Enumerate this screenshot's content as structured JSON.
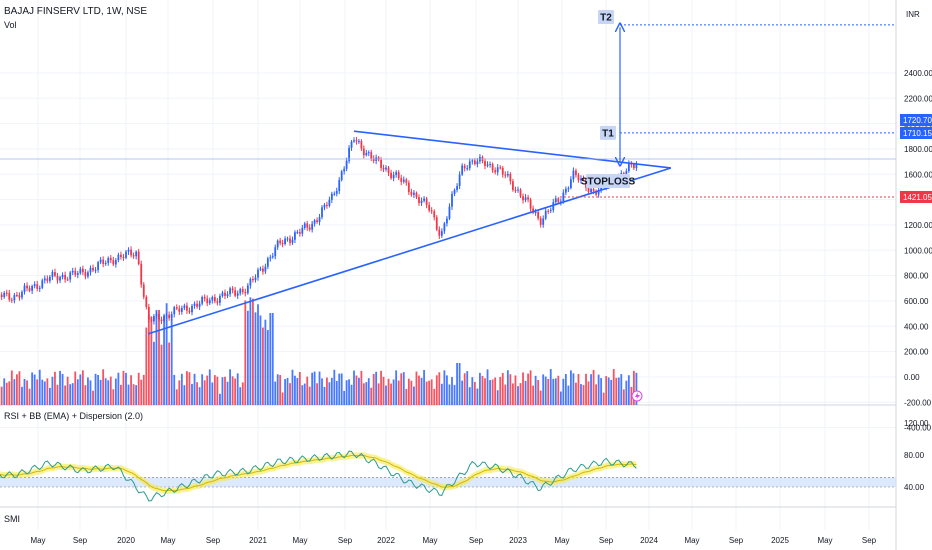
{
  "header": {
    "title": "BAJAJ FINSERV LTD, 1W, NSE",
    "volume_label": "Vol"
  },
  "indicators": {
    "rsi_label": "RSI + BB (EMA) + Dispersion (2.0)",
    "smi_label": "SMI",
    "flash_icon": "lightning-icon"
  },
  "colors": {
    "up": "#2962ff",
    "down": "#f23645",
    "trendline": "#2962ff",
    "stoploss": "#f23645",
    "bb_fill": "#f5e93a",
    "rsi_band": "#cfe0fb"
  },
  "chart_data": [
    {
      "type": "line",
      "title": "BAJAJ FINSERV LTD, 1W, NSE",
      "y_unit": "INR",
      "xlabel": "",
      "ylabel": "",
      "x_ticks": [
        "May",
        "Sep",
        "2020",
        "May",
        "Sep",
        "2021",
        "May",
        "Sep",
        "2022",
        "May",
        "Sep",
        "2023",
        "May",
        "Sep",
        "2024",
        "May",
        "Sep",
        "2025",
        "May",
        "Sep"
      ],
      "y_ticks": [
        2400,
        2200,
        2000,
        1800,
        1600,
        1400,
        1200,
        1000,
        800,
        600,
        400,
        200,
        0,
        -200,
        -400
      ],
      "ylim": [
        -450,
        2800
      ],
      "series": [
        {
          "x": [
            "2019-03",
            "2019-06",
            "2019-09",
            "2019-12",
            "2020-02",
            "2020-03",
            "2020-06",
            "2020-09",
            "2020-12",
            "2021-03",
            "2021-06",
            "2021-08",
            "2021-10",
            "2021-12",
            "2022-02",
            "2022-05",
            "2022-06",
            "2022-08",
            "2022-10",
            "2022-12",
            "2023-03",
            "2023-05",
            "2023-06",
            "2023-08",
            "2023-10",
            "2023-12"
          ],
          "values": [
            640,
            780,
            820,
            940,
            980,
            440,
            530,
            620,
            700,
            1050,
            1200,
            1420,
            1880,
            1700,
            1580,
            1320,
            1120,
            1680,
            1700,
            1580,
            1240,
            1420,
            1600,
            1460,
            1560,
            1700
          ]
        }
      ],
      "annotations": [
        {
          "label": "T1",
          "value": 1926.85
        },
        {
          "label": "T2",
          "value": 2780
        },
        {
          "label": "STOPLOSS",
          "value": 1421.05
        }
      ],
      "price_labels": [
        "INR",
        "1926.85",
        "1720.70",
        "1710.15",
        "1421.05"
      ],
      "trendlines": [
        {
          "name": "upper",
          "from": {
            "x": "2021-10",
            "y": 1940
          },
          "to": {
            "x": "2024-03",
            "y": 1650
          }
        },
        {
          "name": "lower",
          "from": {
            "x": "2020-03",
            "y": 340
          },
          "to": {
            "x": "2024-03",
            "y": 1650
          }
        }
      ]
    },
    {
      "type": "line",
      "title": "RSI + BB (EMA) + Dispersion (2.0)",
      "y_ticks": [
        120,
        80,
        40
      ],
      "ylim": [
        20,
        130
      ],
      "band": [
        40,
        52
      ],
      "series": [
        {
          "x": [
            "2019-03",
            "2019-06",
            "2019-09",
            "2019-12",
            "2020-03",
            "2020-06",
            "2020-09",
            "2020-12",
            "2021-03",
            "2021-06",
            "2021-10",
            "2021-12",
            "2022-03",
            "2022-06",
            "2022-09",
            "2022-11",
            "2023-01",
            "2023-03",
            "2023-06",
            "2023-09",
            "2023-12"
          ],
          "values": [
            55,
            70,
            60,
            66,
            25,
            40,
            56,
            60,
            72,
            76,
            82,
            70,
            46,
            32,
            70,
            65,
            54,
            38,
            62,
            72,
            67
          ]
        }
      ]
    }
  ]
}
